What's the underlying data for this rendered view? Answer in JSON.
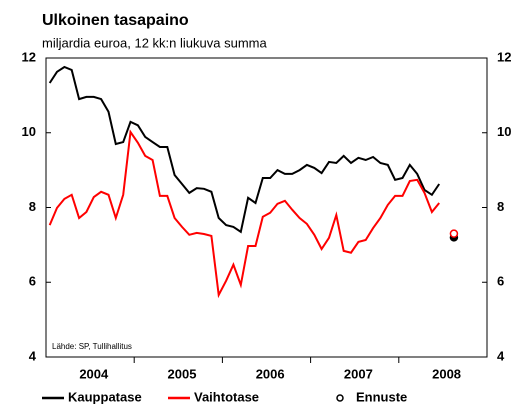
{
  "chart_data": {
    "type": "line",
    "title": "Ulkoinen tasapaino",
    "subtitle": "miljardia euroa, 12 kk:n liukuva summa",
    "note": "Lähde: SP, Tullihallitus",
    "forecast_label": "Ennuste",
    "categories": [
      null,
      null,
      null,
      null,
      null,
      null,
      "2004",
      null,
      null,
      null,
      null,
      null,
      null,
      null,
      null,
      null,
      null,
      null,
      "2005",
      null,
      null,
      null,
      null,
      null,
      null,
      null,
      null,
      null,
      null,
      null,
      "2006",
      null,
      null,
      null,
      null,
      null,
      null,
      null,
      null,
      null,
      null,
      null,
      "2007",
      null,
      null,
      null,
      null,
      null,
      null,
      null,
      null,
      null,
      null,
      null,
      "2008",
      null,
      null,
      null,
      null,
      null
    ],
    "series": [
      {
        "name": "Kauppatase",
        "color": "#000000",
        "marker_fill": "#000000",
        "values": [
          11.33,
          11.63,
          11.76,
          11.68,
          10.9,
          10.96,
          10.96,
          10.9,
          10.56,
          9.7,
          9.75,
          10.29,
          10.2,
          9.89,
          9.75,
          9.62,
          9.62,
          8.87,
          8.63,
          8.39,
          8.52,
          8.5,
          8.42,
          7.72,
          7.53,
          7.48,
          7.35,
          8.26,
          8.12,
          8.79,
          8.79,
          9.0,
          8.9,
          8.9,
          9.0,
          9.14,
          9.06,
          8.92,
          9.22,
          9.19,
          9.38,
          9.19,
          9.33,
          9.27,
          9.35,
          9.19,
          9.14,
          8.74,
          8.79,
          9.14,
          8.9,
          8.47,
          8.34,
          8.63,
          null,
          7.2,
          null,
          null,
          null,
          null
        ]
      },
      {
        "name": "Vaihtotase",
        "color": "#ff0000",
        "marker_fill": "#ffffff",
        "values": [
          7.53,
          7.99,
          8.23,
          8.34,
          7.72,
          7.88,
          8.28,
          8.42,
          8.34,
          7.72,
          8.34,
          10.02,
          9.73,
          9.38,
          9.27,
          8.31,
          8.31,
          7.72,
          7.48,
          7.27,
          7.32,
          7.29,
          7.24,
          5.66,
          6.04,
          6.47,
          5.93,
          6.97,
          6.97,
          7.75,
          7.86,
          8.1,
          8.18,
          7.94,
          7.72,
          7.56,
          7.27,
          6.89,
          7.19,
          7.8,
          6.84,
          6.79,
          7.08,
          7.13,
          7.45,
          7.72,
          8.07,
          8.31,
          8.31,
          8.71,
          8.74,
          8.39,
          7.88,
          8.12,
          null,
          7.3,
          null,
          null,
          null,
          null
        ]
      }
    ],
    "ylim": [
      4,
      12
    ],
    "yticks": [
      4,
      6,
      8,
      10,
      12
    ],
    "grid": false
  }
}
